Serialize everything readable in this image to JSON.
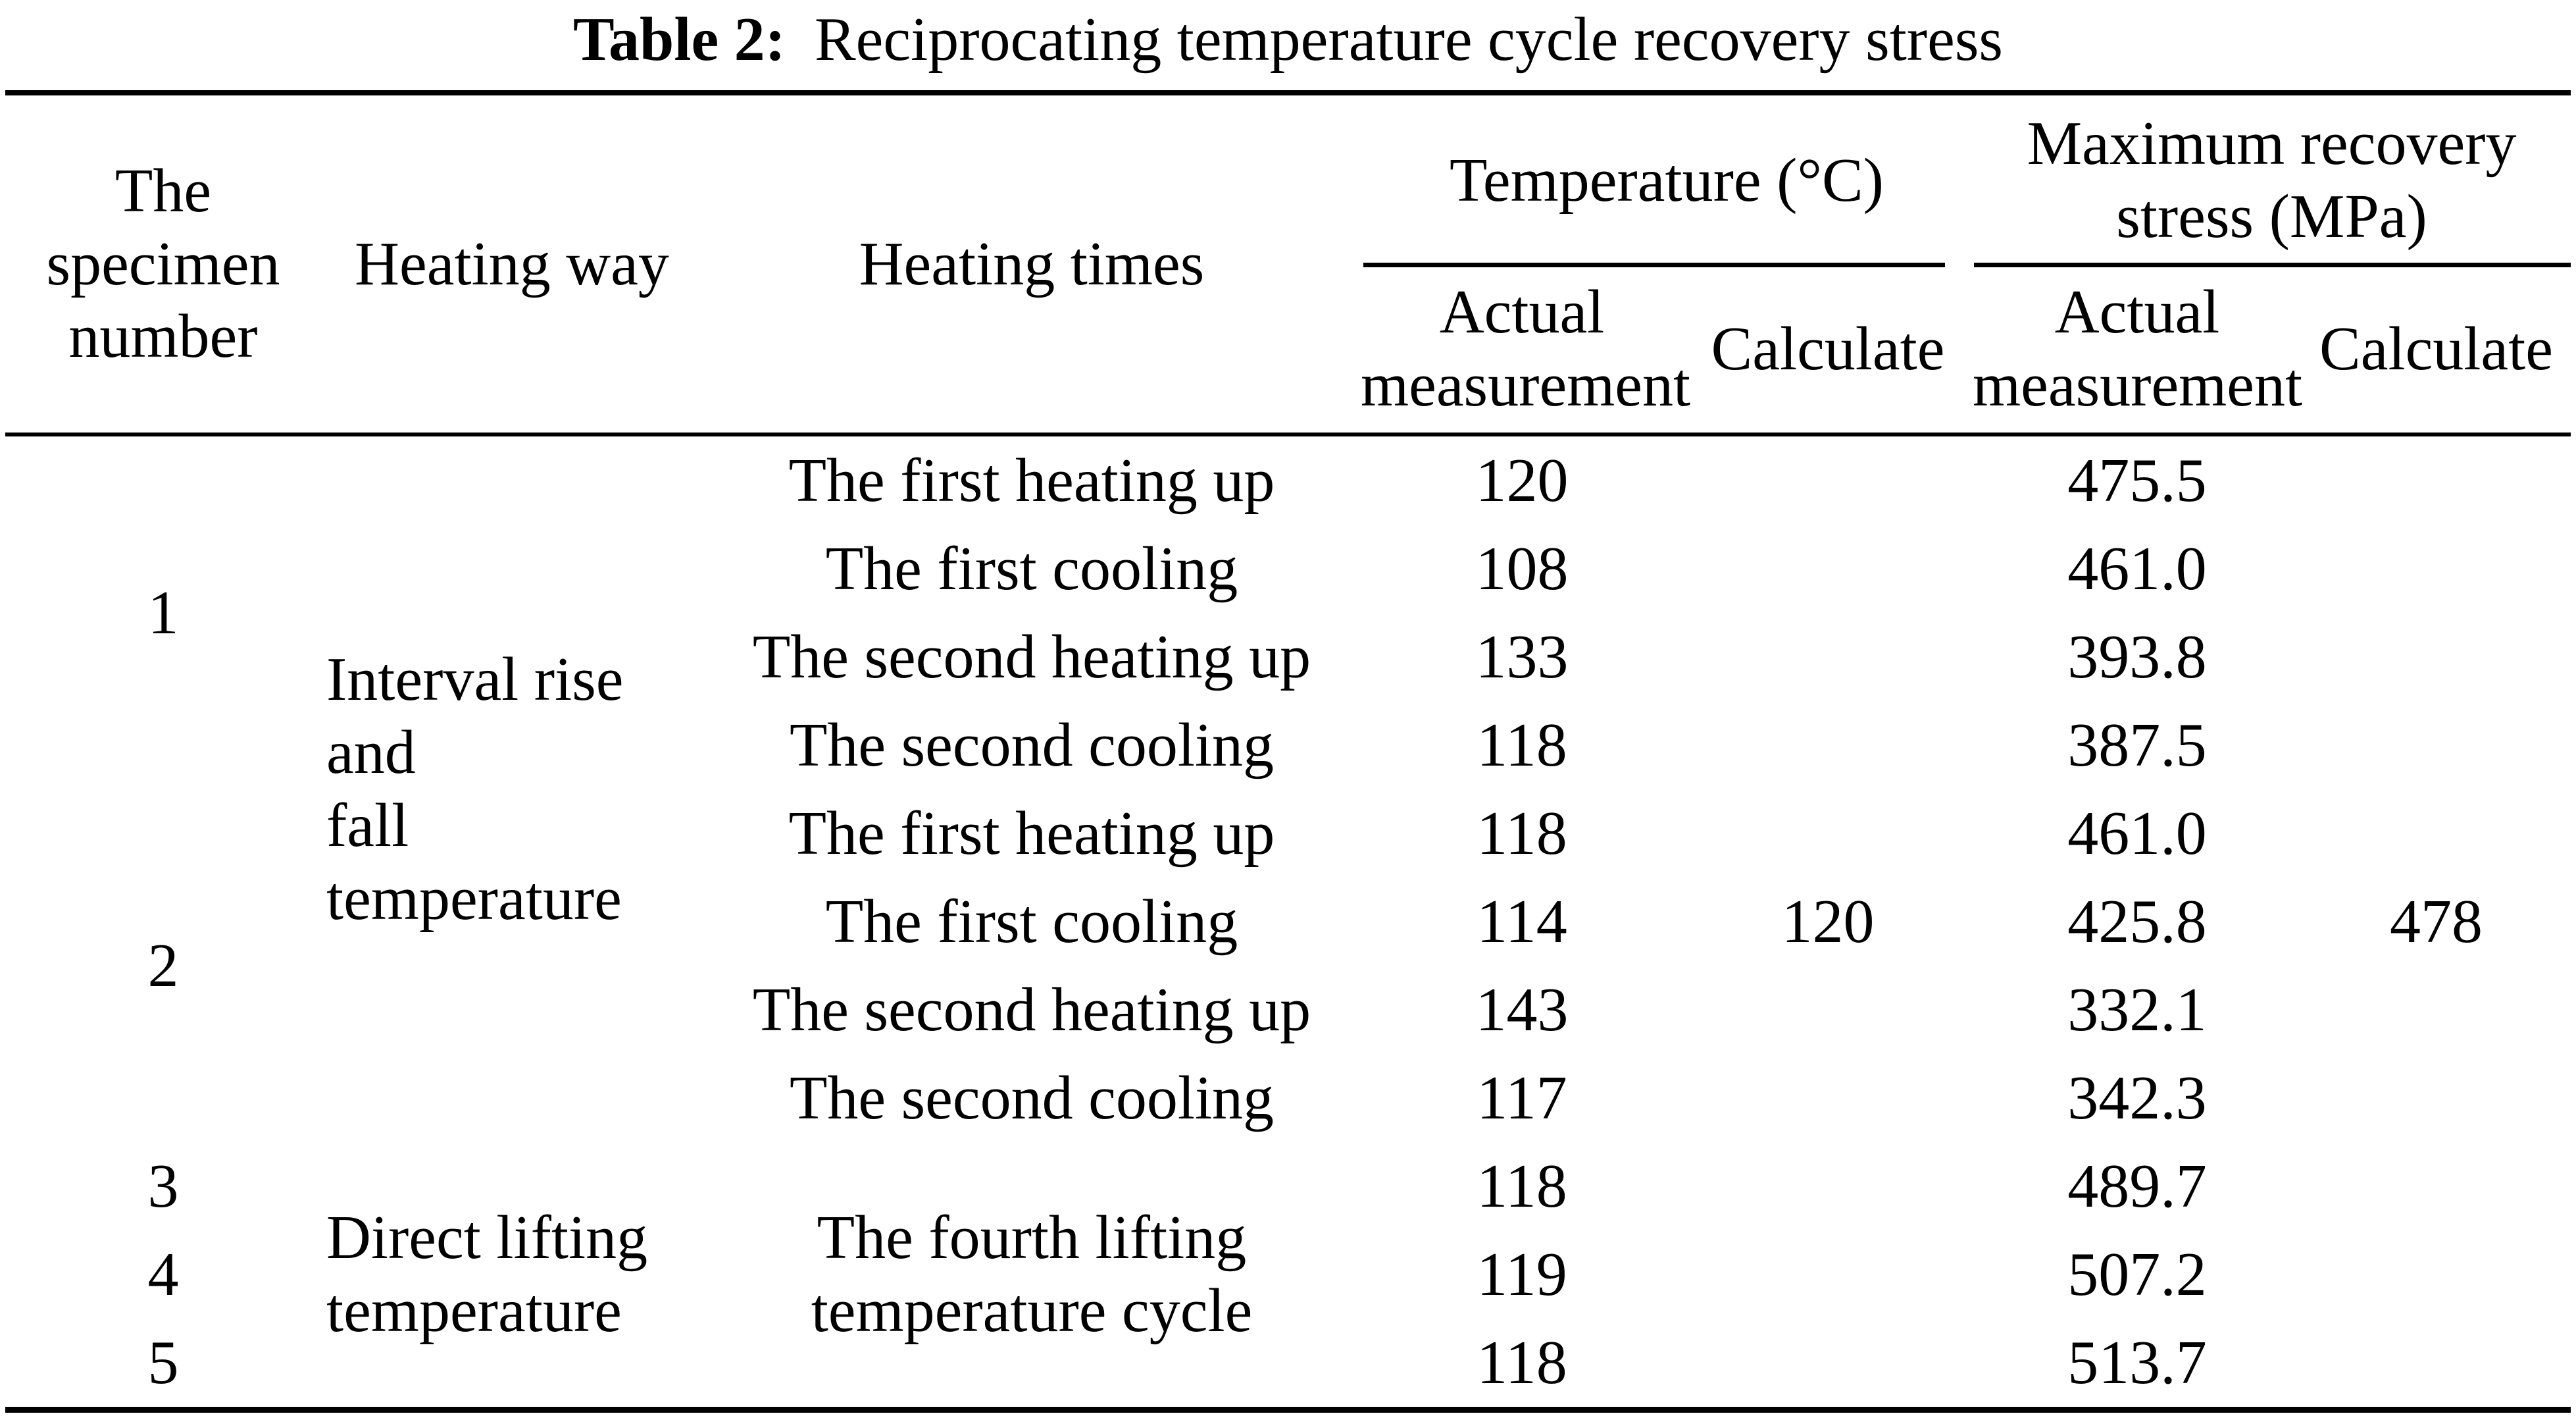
{
  "title": {
    "label": "Table 2:",
    "text": "Reciprocating temperature cycle recovery stress"
  },
  "header": {
    "specimen_lines": [
      "The",
      "specimen",
      "number"
    ],
    "heating_way": "Heating way",
    "heating_times": "Heating times",
    "temperature_group": "Temperature (°C)",
    "stress_group_lines": [
      "Maximum recovery",
      "stress (MPa)"
    ],
    "actual_lines": [
      "Actual",
      "measurement"
    ],
    "calculate": "Calculate"
  },
  "body": {
    "specimen_1": "1",
    "specimen_2": "2",
    "specimen_3": "3",
    "specimen_4": "4",
    "specimen_5": "5",
    "heating_way_interval_lines": [
      "Interval rise and",
      "fall temperature"
    ],
    "heating_way_direct_lines": [
      "Direct lifting",
      "temperature"
    ],
    "heating_times_fourth_lines": [
      "The fourth lifting",
      "temperature cycle"
    ],
    "calculate_temp": "120",
    "calculate_stress": "478",
    "rows": [
      {
        "heating_time": "The first heating up",
        "temp_actual": "120",
        "stress_actual": "475.5"
      },
      {
        "heating_time": "The first cooling",
        "temp_actual": "108",
        "stress_actual": "461.0"
      },
      {
        "heating_time": "The second heating up",
        "temp_actual": "133",
        "stress_actual": "393.8"
      },
      {
        "heating_time": "The second cooling",
        "temp_actual": "118",
        "stress_actual": "387.5"
      },
      {
        "heating_time": "The first heating up",
        "temp_actual": "118",
        "stress_actual": "461.0"
      },
      {
        "heating_time": "The first cooling",
        "temp_actual": "114",
        "stress_actual": "425.8"
      },
      {
        "heating_time": "The second heating up",
        "temp_actual": "143",
        "stress_actual": "332.1"
      },
      {
        "heating_time": "The second cooling",
        "temp_actual": "117",
        "stress_actual": "342.3"
      },
      {
        "heating_time": "",
        "temp_actual": "118",
        "stress_actual": "489.7"
      },
      {
        "heating_time": "",
        "temp_actual": "119",
        "stress_actual": "507.2"
      },
      {
        "heating_time": "",
        "temp_actual": "118",
        "stress_actual": "513.7"
      }
    ]
  }
}
